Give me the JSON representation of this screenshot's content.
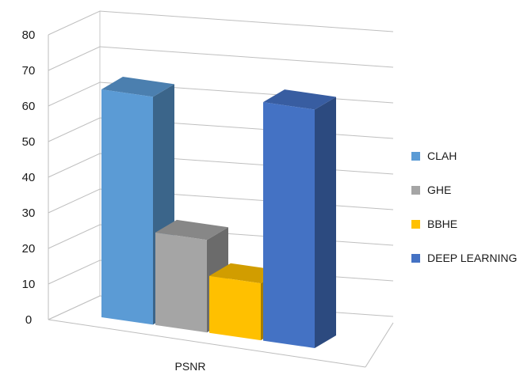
{
  "chart_data": {
    "type": "bar",
    "categories": [
      "PSNR"
    ],
    "series": [
      {
        "name": "CLAH",
        "values": [
          64
        ],
        "color": "#5B9BD5"
      },
      {
        "name": "GHE",
        "values": [
          26
        ],
        "color": "#A5A5A5"
      },
      {
        "name": "BBHE",
        "values": [
          16
        ],
        "color": "#FFC000"
      },
      {
        "name": "DEEP LEARNING",
        "values": [
          67
        ],
        "color": "#4472C4"
      }
    ],
    "yticks": [
      "0",
      "10",
      "20",
      "30",
      "40",
      "50",
      "60",
      "70",
      "80"
    ],
    "ylim": [
      0,
      80
    ],
    "grid": true,
    "legend": "right",
    "style": "3d-column"
  }
}
